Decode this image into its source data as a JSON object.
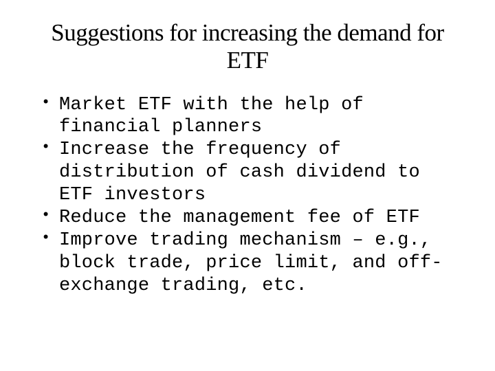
{
  "slide": {
    "title": "Suggestions for increasing the demand for ETF",
    "title_font_family": "Times New Roman",
    "title_font_size": 35,
    "title_color": "#000000",
    "body_font_family": "Courier New",
    "body_font_size": 27,
    "body_color": "#000000",
    "background_color": "#ffffff",
    "bullets": [
      {
        "text": "Market ETF with the help of financial planners"
      },
      {
        "text": "Increase the frequency of distribution of  cash dividend to ETF investors"
      },
      {
        "text": "Reduce the management fee of ETF"
      },
      {
        "text": "Improve trading mechanism – e.g., block trade, price limit, and off-exchange trading, etc."
      }
    ]
  }
}
